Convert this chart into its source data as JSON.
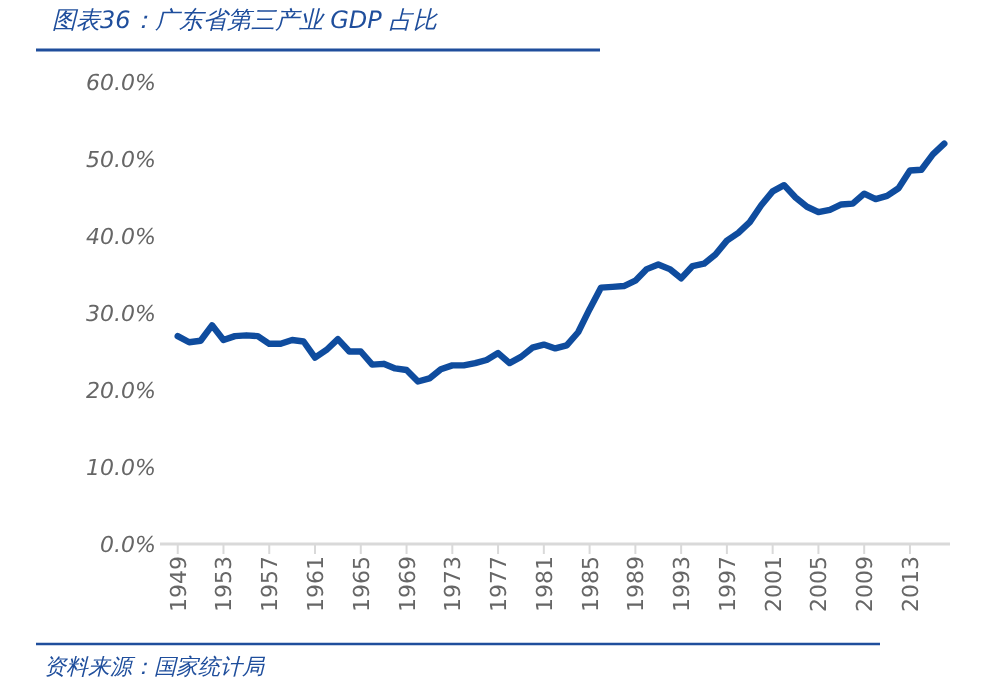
{
  "chart_data": {
    "type": "line",
    "title": "图表36：广东省第三产业 GDP 占比",
    "annotations": [
      "资料来源：国家统计局"
    ],
    "categories": [
      "1949",
      null,
      null,
      null,
      "1953",
      null,
      null,
      null,
      "1957",
      null,
      null,
      null,
      "1961",
      null,
      null,
      null,
      "1965",
      null,
      null,
      null,
      "1969",
      null,
      null,
      null,
      "1973",
      null,
      null,
      null,
      "1977",
      null,
      null,
      null,
      "1981",
      null,
      null,
      null,
      "1985",
      null,
      null,
      null,
      "1989",
      null,
      null,
      null,
      "1993",
      null,
      null,
      null,
      "1997",
      null,
      null,
      null,
      "2001",
      null,
      null,
      null,
      "2005",
      null,
      null,
      null,
      "2009",
      null,
      null,
      null,
      "2013",
      null,
      null,
      null
    ],
    "series": [
      {
        "color": "#0f4c9e",
        "values": [
          27.0,
          26.2,
          26.4,
          28.4,
          26.5,
          27.0,
          27.1,
          27.0,
          26.0,
          26.0,
          26.5,
          26.3,
          24.2,
          25.2,
          26.6,
          25.0,
          25.0,
          23.3,
          23.4,
          22.8,
          22.6,
          21.1,
          21.5,
          22.7,
          23.2,
          23.2,
          23.5,
          23.9,
          24.8,
          23.5,
          24.3,
          25.5,
          25.9,
          25.4,
          25.8,
          27.5,
          30.5,
          33.3,
          33.4,
          33.5,
          34.2,
          35.7,
          36.3,
          35.7,
          34.5,
          36.1,
          36.4,
          37.6,
          39.4,
          40.4,
          41.8,
          44.0,
          45.8,
          46.6,
          45.0,
          43.8,
          43.1,
          43.4,
          44.1,
          44.2,
          45.5,
          44.8,
          45.2,
          46.2,
          48.5,
          48.6,
          50.6,
          52.0
        ]
      }
    ],
    "ylim": [
      0,
      60
    ],
    "yticks": [
      {
        "value": 0,
        "label": "0.0%"
      },
      {
        "value": 10,
        "label": "10.0%"
      },
      {
        "value": 20,
        "label": "20.0%"
      },
      {
        "value": 30,
        "label": "30.0%"
      },
      {
        "value": 40,
        "label": "40.0%"
      },
      {
        "value": 50,
        "label": "50.0%"
      },
      {
        "value": 60,
        "label": "60.0%"
      }
    ],
    "marker": "none",
    "line_style": "solid"
  }
}
